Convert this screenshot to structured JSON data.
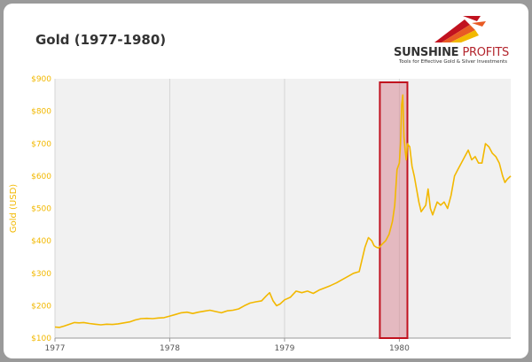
{
  "title": "Gold (1977-1980)",
  "logo": {
    "name_part1": "SUNSHINE",
    "name_part2": "PROFITS",
    "tagline": "Tools for Effective Gold & Silver Investments",
    "icon": "sunrise-arrows-logo-icon"
  },
  "colors": {
    "line": "#f2b800",
    "axis_label": "#f2b800",
    "highlight_fill": "#d98a98",
    "highlight_stroke": "#c1121f",
    "plot_bg": "#f1f1f1"
  },
  "chart_data": {
    "type": "line",
    "title": "Gold (1977-1980)",
    "xlabel": "",
    "ylabel": "Gold (USD)",
    "ylim": [
      100,
      900
    ],
    "xlim": [
      1977.0,
      1980.97
    ],
    "x_ticks": [
      1977,
      1978,
      1979,
      1980
    ],
    "x_tick_labels": [
      "1977",
      "1978",
      "1979",
      "1980"
    ],
    "y_ticks": [
      100,
      200,
      300,
      400,
      500,
      600,
      700,
      800,
      900
    ],
    "y_tick_labels": [
      "$100",
      "$200",
      "$300",
      "$400",
      "$500",
      "$600",
      "$700",
      "$800",
      "$900"
    ],
    "grid": "vertical",
    "highlight": {
      "x_start": 1979.83,
      "x_end": 1980.07
    },
    "series": [
      {
        "x": [
          1977.0,
          1977.04,
          1977.08,
          1977.12,
          1977.17,
          1977.21,
          1977.25,
          1977.3,
          1977.35,
          1977.4,
          1977.45,
          1977.5,
          1977.55,
          1977.6,
          1977.65,
          1977.7,
          1977.75,
          1977.8,
          1977.85,
          1977.9,
          1977.95,
          1978.0,
          1978.05,
          1978.1,
          1978.15,
          1978.2,
          1978.25,
          1978.3,
          1978.35,
          1978.4,
          1978.45,
          1978.5,
          1978.55,
          1978.6,
          1978.65,
          1978.7,
          1978.75,
          1978.8,
          1978.84,
          1978.87,
          1978.9,
          1978.93,
          1978.96,
          1979.0,
          1979.05,
          1979.1,
          1979.15,
          1979.2,
          1979.25,
          1979.3,
          1979.35,
          1979.4,
          1979.45,
          1979.5,
          1979.55,
          1979.6,
          1979.65,
          1979.7,
          1979.73,
          1979.76,
          1979.78,
          1979.8,
          1979.82,
          1979.85,
          1979.88,
          1979.91,
          1979.94,
          1979.96,
          1979.98,
          1980.0,
          1980.01,
          1980.02,
          1980.03,
          1980.04,
          1980.05,
          1980.06,
          1980.07,
          1980.09,
          1980.11,
          1980.13,
          1980.15,
          1980.17,
          1980.19,
          1980.21,
          1980.23,
          1980.25,
          1980.27,
          1980.29,
          1980.31,
          1980.33,
          1980.36,
          1980.39,
          1980.42,
          1980.45,
          1980.48,
          1980.51,
          1980.54,
          1980.57,
          1980.6,
          1980.63,
          1980.66,
          1980.69,
          1980.72,
          1980.75,
          1980.78,
          1980.81,
          1980.84,
          1980.87,
          1980.9,
          1980.92,
          1980.94,
          1980.97
        ],
        "y": [
          134,
          133,
          137,
          142,
          148,
          147,
          148,
          145,
          143,
          141,
          143,
          142,
          144,
          147,
          150,
          156,
          160,
          161,
          160,
          162,
          163,
          168,
          173,
          178,
          180,
          176,
          180,
          183,
          186,
          182,
          178,
          184,
          186,
          190,
          200,
          208,
          212,
          215,
          230,
          240,
          215,
          200,
          205,
          218,
          226,
          245,
          240,
          245,
          238,
          248,
          255,
          262,
          270,
          280,
          290,
          300,
          305,
          380,
          410,
          400,
          385,
          380,
          378,
          390,
          400,
          420,
          460,
          510,
          620,
          640,
          700,
          820,
          850,
          720,
          680,
          650,
          700,
          690,
          630,
          600,
          560,
          520,
          490,
          500,
          510,
          560,
          500,
          480,
          500,
          520,
          510,
          520,
          500,
          540,
          600,
          620,
          640,
          660,
          680,
          650,
          660,
          640,
          640,
          700,
          690,
          670,
          660,
          640,
          600,
          580,
          590,
          600
        ]
      }
    ]
  }
}
